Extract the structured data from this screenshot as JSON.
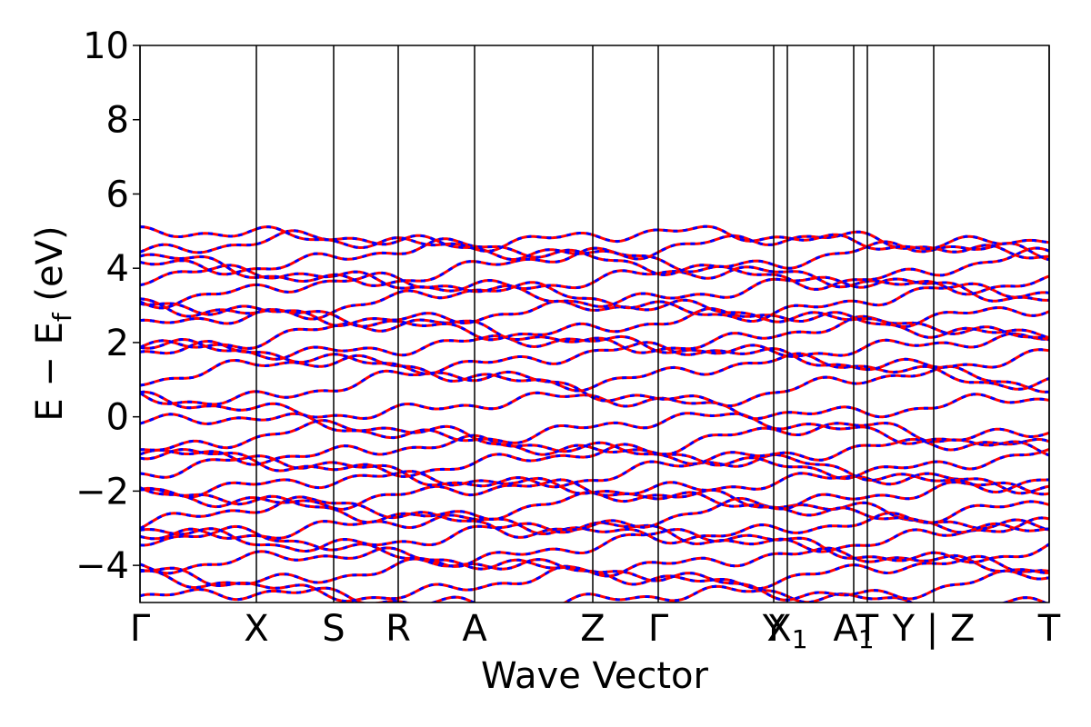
{
  "chart_data": {
    "type": "line",
    "title": "",
    "xlabel": "Wave Vector",
    "ylabel": "E − E",
    "ylabel_subscript": "f",
    "ylabel_unit": " (eV)",
    "ylim": [
      -5,
      10
    ],
    "yticks": [
      -4,
      -2,
      0,
      2,
      4,
      6,
      8,
      10
    ],
    "ytick_labels": [
      "−4",
      "−2",
      "0",
      "2",
      "4",
      "6",
      "8",
      "10"
    ],
    "xlim": [
      0,
      100
    ],
    "high_symmetry_points": [
      {
        "label": "Γ",
        "x": 0
      },
      {
        "label": "X",
        "x": 12.8
      },
      {
        "label": "S",
        "x": 21.3
      },
      {
        "label": "R",
        "x": 28.4
      },
      {
        "label": "A",
        "x": 36.8
      },
      {
        "label": "Z",
        "x": 49.8
      },
      {
        "label": "Γ",
        "x": 57.0
      },
      {
        "label": "Y",
        "x": 69.7
      },
      {
        "label": "X",
        "sub": "1",
        "x": 71.2
      },
      {
        "label": "A",
        "sub": "1",
        "x": 78.5
      },
      {
        "label": "T",
        "x": 80.0
      },
      {
        "label": "Y | Z",
        "x": 87.3
      },
      {
        "label": "T",
        "x": 100
      }
    ],
    "series": [
      {
        "color": "#ff0000",
        "style": "solid"
      },
      {
        "color": "#0000ff",
        "style": "dashed"
      }
    ],
    "band_energies_at_gamma": [
      -4.9,
      -4.5,
      -4.2,
      -3.9,
      -3.5,
      -3.2,
      -3.0,
      -2.7,
      -2.4,
      -2.1,
      -1.8,
      -1.5,
      -1.2,
      -0.9,
      -0.6,
      -0.3,
      0.3,
      0.8,
      1.2,
      1.6,
      1.9,
      2.2,
      2.5,
      2.8,
      3.1,
      3.4,
      3.7,
      4.0,
      4.3,
      4.6,
      4.8
    ],
    "grid": false,
    "legend": "none"
  }
}
